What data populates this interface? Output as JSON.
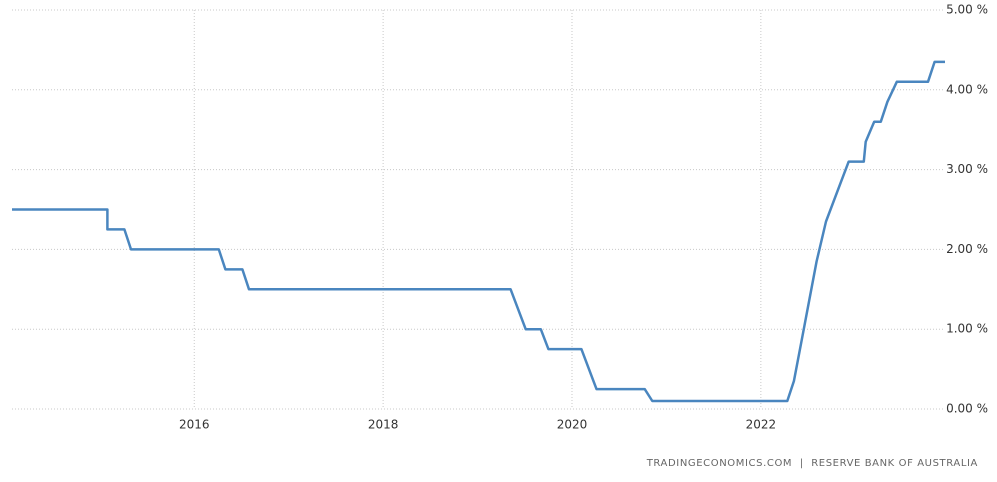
{
  "chart_data": {
    "type": "line",
    "x": [
      2014.07,
      2015.08,
      2015.08,
      2015.26,
      2015.33,
      2016.26,
      2016.33,
      2016.51,
      2016.58,
      2019.35,
      2019.51,
      2019.67,
      2019.75,
      2020.1,
      2020.26,
      2020.77,
      2020.85,
      2022.28,
      2022.35,
      2022.43,
      2022.59,
      2022.69,
      2022.85,
      2022.93,
      2023.09,
      2023.11,
      2023.2,
      2023.27,
      2023.34,
      2023.44,
      2023.77,
      2023.84,
      2023.95
    ],
    "values": [
      2.5,
      2.5,
      2.25,
      2.25,
      2.0,
      2.0,
      1.75,
      1.75,
      1.5,
      1.5,
      1.0,
      1.0,
      0.75,
      0.75,
      0.25,
      0.25,
      0.1,
      0.1,
      0.35,
      0.85,
      1.85,
      2.35,
      2.85,
      3.1,
      3.1,
      3.35,
      3.6,
      3.6,
      3.85,
      4.1,
      4.1,
      4.35,
      4.35
    ],
    "color": "#4a86bf",
    "xlim": [
      2014.07,
      2023.95
    ],
    "xticks": [
      2016,
      2018,
      2020,
      2022
    ],
    "ylim": [
      0,
      5
    ],
    "yticks": [
      {
        "value": 0,
        "label": "0.00 %"
      },
      {
        "value": 1,
        "label": "1.00 %"
      },
      {
        "value": 2,
        "label": "2.00 %"
      },
      {
        "value": 3,
        "label": "3.00 %"
      },
      {
        "value": 4,
        "label": "4.00 %"
      },
      {
        "value": 5,
        "label": "5.00 %"
      }
    ],
    "grid": true,
    "source": "TRADINGECONOMICS.COM  |  RESERVE BANK OF AUSTRALIA"
  }
}
